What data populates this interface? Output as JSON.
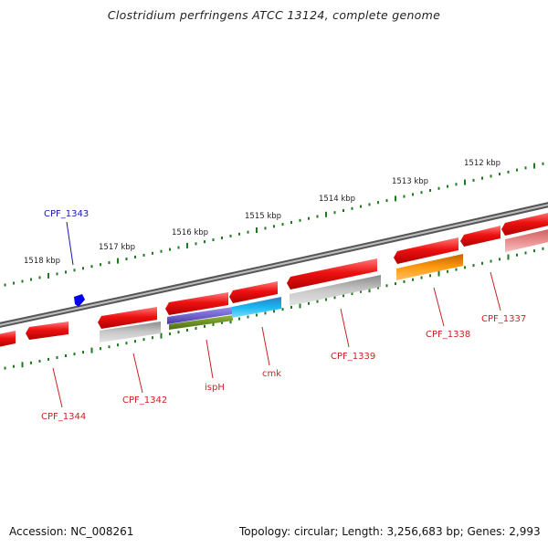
{
  "title": "Clostridium perfringens ATCC 13124, complete genome",
  "accession": "Accession: NC_008261",
  "summary": "Topology: circular; Length: 3,256,683 bp; Genes: 2,993",
  "scale": {
    "labels": [
      "1518 kbp",
      "1517 kbp",
      "1516 kbp",
      "1515 kbp",
      "1514 kbp",
      "1513 kbp",
      "1512 kbp"
    ],
    "tick_color": "#1f7a1f"
  },
  "genes": [
    {
      "name": "CPF_1344",
      "color": "#cc2222"
    },
    {
      "name": "CPF_1343",
      "color": "#1a1aaa"
    },
    {
      "name": "CPF_1342",
      "color": "#cc2222"
    },
    {
      "name": "ispH",
      "color": "#cc2222"
    },
    {
      "name": "cmk",
      "color": "#cc2222"
    },
    {
      "name": "CPF_1339",
      "color": "#cc2222"
    },
    {
      "name": "CPF_1338",
      "color": "#cc2222"
    },
    {
      "name": "CPF_1337",
      "color": "#cc2222"
    }
  ],
  "colors": {
    "cds_red": "#ee1111",
    "gene_gray": "#b0b0b0",
    "rrna_purple": "#6a5acd",
    "green_feature": "#6b8e23",
    "cyan_feature": "#1eaee6",
    "orange_feature": "#ff8c00",
    "pink_feature": "#e88a8a",
    "backbone": "#8c8c8c",
    "minus_marker": "#0000ee"
  }
}
